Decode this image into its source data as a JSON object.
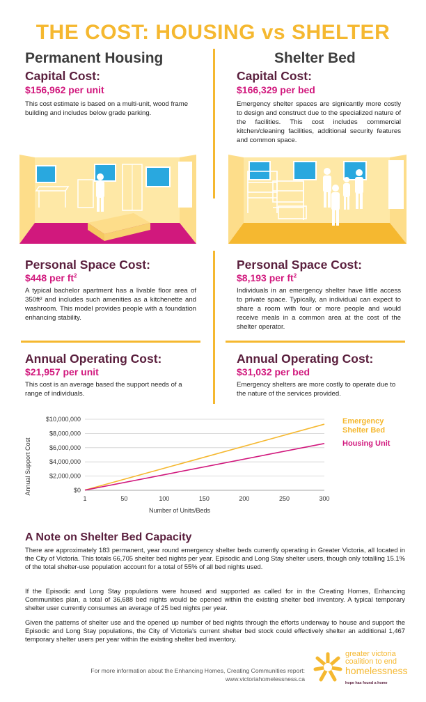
{
  "title": "THE COST: HOUSING vs SHELTER",
  "columns": {
    "left": {
      "heading": "Permanent Housing",
      "capital": {
        "label": "Capital Cost:",
        "value": "$156,962 per unit",
        "text": "This cost estimate is based on a multi-unit, wood frame building and includes below grade parking."
      },
      "personal": {
        "label": "Personal Space Cost:",
        "value": "$448 per ft",
        "sup": "2",
        "text": "A typical bachelor apartment has a livable floor area of 350ft² and includes such amenities as a kitchenette and washroom. This model provides people with a foundation enhancing stability."
      },
      "operating": {
        "label": "Annual Operating Cost:",
        "value": "$21,957 per unit",
        "text": "This cost is an average based the support needs of a range of individuals."
      }
    },
    "right": {
      "heading": "Shelter Bed",
      "capital": {
        "label": "Capital Cost:",
        "value": "$166,329 per bed",
        "text": "Emergency shelter spaces are signicantly more costly to design and construct due to the specialized nature of the facilities. This cost includes commercial kitchen/cleaning facilities, additional security features and common space."
      },
      "personal": {
        "label": "Personal Space Cost:",
        "value": "$8,193 per ft",
        "sup": "2",
        "text": "Individuals in an emergency shelter have little access to private space. Typically, an individual can expect to share a room with four or more people and would receive meals in a common area at the cost of the shelter operator."
      },
      "operating": {
        "label": "Annual Operating Cost:",
        "value": "$31,032 per bed",
        "text": "Emergency shelters are more costly to operate due to the nature of the services provided."
      }
    }
  },
  "chart_data": {
    "type": "line",
    "xlabel": "Number of Units/Beds",
    "ylabel": "Annual Support Cost",
    "x_ticks": [
      "1",
      "50",
      "100",
      "150",
      "200",
      "250",
      "300"
    ],
    "y_ticks": [
      "$10,000,000",
      "$8,000,000",
      "$6,000,000",
      "$4,000,000",
      "$2,000,000",
      "$0"
    ],
    "xlim": [
      1,
      300
    ],
    "ylim": [
      0,
      10000000
    ],
    "series": [
      {
        "name": "Emergency Shelter Bed",
        "color": "#f5b830",
        "x": [
          1,
          300
        ],
        "values": [
          31032,
          9309600
        ]
      },
      {
        "name": "Housing Unit",
        "color": "#d1187d",
        "x": [
          1,
          300
        ],
        "values": [
          21957,
          6587100
        ]
      }
    ],
    "legend": "right"
  },
  "note": {
    "title": "A Note on Shelter Bed Capacity",
    "p1": "There are approximately 183 permanent, year round emergency shelter beds currently operating in Greater Victoria, all located in the City of Victoria. This totals 66,705 shelter bed nights per year. Episodic and Long Stay shelter users, though only totalling 15.1% of the total shelter-use population account for a total of 55% of all bed nights used.",
    "p2": "If the Episodic and Long Stay populations were housed and supported as called for in the Creating Homes, Enhancing Communities plan, a total of 36,688 bed nights would be opened within the existing shelter bed inventory. A typical temporary shelter user currently consumes an average of 25 bed nights per year.",
    "p3": "Given the patterns of shelter use and the opened up number of bed nights through the efforts underway to house and support the Episodic and Long Stay populations, the City of Victoria's current shelter bed stock could effectively shelter an additional 1,467 temporary shelter users per year within the existing shelter bed inventory."
  },
  "footer": {
    "line1": "For more information about the Enhancing Homes, Creating Communities report:",
    "line2": "www.victoriahomelessness.ca"
  },
  "logo": {
    "line1": "greater victoria",
    "line2": "coalition to end",
    "line3": "homelessness",
    "tagline": "hope has found a home"
  },
  "colors": {
    "accent": "#f5b830",
    "magenta": "#d1187d",
    "plum": "#5a1f3d"
  }
}
